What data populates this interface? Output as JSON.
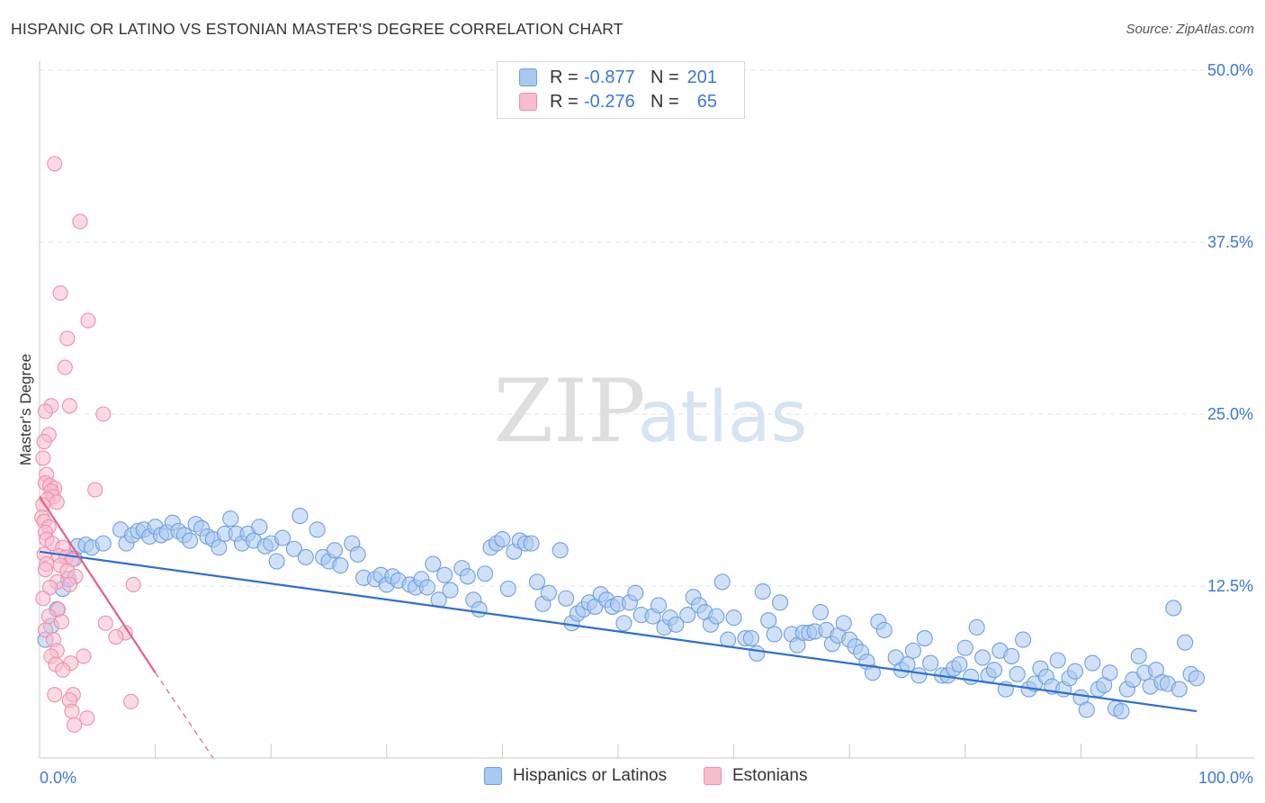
{
  "header": {
    "title": "HISPANIC OR LATINO VS ESTONIAN MASTER'S DEGREE CORRELATION CHART",
    "source": "Source: ZipAtlas.com"
  },
  "watermark": {
    "zip": "ZIP",
    "atlas": "atlas"
  },
  "legend_top": {
    "rows": [
      {
        "r_label": "R =",
        "r_value": "-0.877",
        "n_label": "N =",
        "n_value": "201"
      },
      {
        "r_label": "R =",
        "r_value": "-0.276",
        "n_label": "N =",
        "n_value": "65"
      }
    ]
  },
  "legend_bottom": {
    "series1": "Hispanics or Latinos",
    "series2": "Estonians"
  },
  "colors": {
    "blue_fill": "#a9c8f0",
    "blue_stroke": "#6f9fe0",
    "blue_line": "#2e6fcf",
    "pink_fill": "#f7bccd",
    "pink_stroke": "#ee8fab",
    "pink_line": "#e0608a",
    "tick_text": "#3b78d8",
    "grid": "#e3e3e3",
    "axis": "#c9c9c9"
  },
  "chart_data": {
    "type": "scatter",
    "title": "HISPANIC OR LATINO VS ESTONIAN MASTER'S DEGREE CORRELATION CHART",
    "xlabel": "",
    "ylabel": "Master's Degree",
    "xlim": [
      0,
      100
    ],
    "ylim": [
      0,
      50
    ],
    "x_tick_labels": [
      "0.0%",
      "100.0%"
    ],
    "y_ticks": [
      12.5,
      25,
      37.5,
      50
    ],
    "y_tick_labels": [
      "12.5%",
      "25.0%",
      "37.5%",
      "50.0%"
    ],
    "grid": "horizontal dashed",
    "legend": "top-center",
    "series": [
      {
        "name": "Hispanics or Latinos",
        "r": -0.877,
        "n": 201,
        "trend": {
          "x": [
            0,
            100
          ],
          "y": [
            15.0,
            3.4
          ]
        },
        "points": [
          [
            0.5,
            8.6
          ],
          [
            1.0,
            9.6
          ],
          [
            1.5,
            10.8
          ],
          [
            2.0,
            12.3
          ],
          [
            2.5,
            13.0
          ],
          [
            3.0,
            14.5
          ],
          [
            3.3,
            15.4
          ],
          [
            4.0,
            15.5
          ],
          [
            4.5,
            15.3
          ],
          [
            5.5,
            15.6
          ],
          [
            7.0,
            16.6
          ],
          [
            7.5,
            15.6
          ],
          [
            8.0,
            16.2
          ],
          [
            8.5,
            16.5
          ],
          [
            9.0,
            16.6
          ],
          [
            9.5,
            16.1
          ],
          [
            10.0,
            16.8
          ],
          [
            10.5,
            16.2
          ],
          [
            11.0,
            16.4
          ],
          [
            11.5,
            17.1
          ],
          [
            12.0,
            16.5
          ],
          [
            12.5,
            16.2
          ],
          [
            13.0,
            15.8
          ],
          [
            13.5,
            17.0
          ],
          [
            14.0,
            16.7
          ],
          [
            14.5,
            16.1
          ],
          [
            15.0,
            15.9
          ],
          [
            15.5,
            15.3
          ],
          [
            16.0,
            16.3
          ],
          [
            16.5,
            17.4
          ],
          [
            17.0,
            16.3
          ],
          [
            17.5,
            15.6
          ],
          [
            18.0,
            16.3
          ],
          [
            18.5,
            15.8
          ],
          [
            19.0,
            16.8
          ],
          [
            19.5,
            15.4
          ],
          [
            20.0,
            15.6
          ],
          [
            20.5,
            14.3
          ],
          [
            21.0,
            16.0
          ],
          [
            22.0,
            15.2
          ],
          [
            22.5,
            17.6
          ],
          [
            23.0,
            14.6
          ],
          [
            24.0,
            16.6
          ],
          [
            24.5,
            14.6
          ],
          [
            25.0,
            14.3
          ],
          [
            25.5,
            15.1
          ],
          [
            26.0,
            14.0
          ],
          [
            27.0,
            15.6
          ],
          [
            27.5,
            14.8
          ],
          [
            28.0,
            13.1
          ],
          [
            29.0,
            13.0
          ],
          [
            29.5,
            13.3
          ],
          [
            30.0,
            12.6
          ],
          [
            30.5,
            13.2
          ],
          [
            31.0,
            12.9
          ],
          [
            32.0,
            12.6
          ],
          [
            32.5,
            12.4
          ],
          [
            33.0,
            13.0
          ],
          [
            33.5,
            12.4
          ],
          [
            34.0,
            14.1
          ],
          [
            34.5,
            11.5
          ],
          [
            35.0,
            13.3
          ],
          [
            35.5,
            12.2
          ],
          [
            36.5,
            13.8
          ],
          [
            37.0,
            13.2
          ],
          [
            37.5,
            11.5
          ],
          [
            38.0,
            10.8
          ],
          [
            38.5,
            13.4
          ],
          [
            39.0,
            15.3
          ],
          [
            39.5,
            15.6
          ],
          [
            40.0,
            15.9
          ],
          [
            40.5,
            12.3
          ],
          [
            41.0,
            15.0
          ],
          [
            41.5,
            15.8
          ],
          [
            42.0,
            15.6
          ],
          [
            42.5,
            15.6
          ],
          [
            43.0,
            12.8
          ],
          [
            43.5,
            11.2
          ],
          [
            44.0,
            12.0
          ],
          [
            45.0,
            15.1
          ],
          [
            45.5,
            11.6
          ],
          [
            46.0,
            9.8
          ],
          [
            46.5,
            10.5
          ],
          [
            47.0,
            10.8
          ],
          [
            47.5,
            11.3
          ],
          [
            48.0,
            11.0
          ],
          [
            48.5,
            11.9
          ],
          [
            49.0,
            11.5
          ],
          [
            49.5,
            11.0
          ],
          [
            50.0,
            11.2
          ],
          [
            50.5,
            9.8
          ],
          [
            51.0,
            11.3
          ],
          [
            51.5,
            12.0
          ],
          [
            52.0,
            10.4
          ],
          [
            53.0,
            10.3
          ],
          [
            53.5,
            11.1
          ],
          [
            54.0,
            9.5
          ],
          [
            54.5,
            10.2
          ],
          [
            55.0,
            9.7
          ],
          [
            56.0,
            10.4
          ],
          [
            56.5,
            11.7
          ],
          [
            57.0,
            11.1
          ],
          [
            57.5,
            10.6
          ],
          [
            58.0,
            9.7
          ],
          [
            58.5,
            10.3
          ],
          [
            59.0,
            12.8
          ],
          [
            59.5,
            8.6
          ],
          [
            60.0,
            10.2
          ],
          [
            61.0,
            8.7
          ],
          [
            61.5,
            8.7
          ],
          [
            62.0,
            7.6
          ],
          [
            62.5,
            12.1
          ],
          [
            63.0,
            10.0
          ],
          [
            63.5,
            9.0
          ],
          [
            64.0,
            11.3
          ],
          [
            65.0,
            9.0
          ],
          [
            65.5,
            8.2
          ],
          [
            66.0,
            9.1
          ],
          [
            66.5,
            9.1
          ],
          [
            67.0,
            9.2
          ],
          [
            67.5,
            10.6
          ],
          [
            68.0,
            9.3
          ],
          [
            68.5,
            8.3
          ],
          [
            69.0,
            8.9
          ],
          [
            69.5,
            9.8
          ],
          [
            70.0,
            8.6
          ],
          [
            70.5,
            8.1
          ],
          [
            71.0,
            7.7
          ],
          [
            71.5,
            7.0
          ],
          [
            72.0,
            6.2
          ],
          [
            72.5,
            9.9
          ],
          [
            73.0,
            9.3
          ],
          [
            74.0,
            7.3
          ],
          [
            74.5,
            6.4
          ],
          [
            75.0,
            6.8
          ],
          [
            75.5,
            7.8
          ],
          [
            76.0,
            6.0
          ],
          [
            76.5,
            8.7
          ],
          [
            77.0,
            6.9
          ],
          [
            78.0,
            6.0
          ],
          [
            78.5,
            6.0
          ],
          [
            79.0,
            6.5
          ],
          [
            79.5,
            6.8
          ],
          [
            80.0,
            8.0
          ],
          [
            80.5,
            5.9
          ],
          [
            81.0,
            9.5
          ],
          [
            81.5,
            7.3
          ],
          [
            82.0,
            6.0
          ],
          [
            82.5,
            6.4
          ],
          [
            83.0,
            7.8
          ],
          [
            83.5,
            5.0
          ],
          [
            84.0,
            7.4
          ],
          [
            84.5,
            6.1
          ],
          [
            85.0,
            8.6
          ],
          [
            85.5,
            5.0
          ],
          [
            86.0,
            5.4
          ],
          [
            86.5,
            6.5
          ],
          [
            87.0,
            5.9
          ],
          [
            87.5,
            5.2
          ],
          [
            88.0,
            7.1
          ],
          [
            88.5,
            5.0
          ],
          [
            89.0,
            5.8
          ],
          [
            89.5,
            6.3
          ],
          [
            90.0,
            4.4
          ],
          [
            90.5,
            3.5
          ],
          [
            91.0,
            6.9
          ],
          [
            91.5,
            5.0
          ],
          [
            92.0,
            5.3
          ],
          [
            92.5,
            6.2
          ],
          [
            93.0,
            3.6
          ],
          [
            93.5,
            3.4
          ],
          [
            94.0,
            5.0
          ],
          [
            94.5,
            5.7
          ],
          [
            95.0,
            7.4
          ],
          [
            95.5,
            6.2
          ],
          [
            96.0,
            5.2
          ],
          [
            96.5,
            6.4
          ],
          [
            97.0,
            5.5
          ],
          [
            97.5,
            5.4
          ],
          [
            98.0,
            10.9
          ],
          [
            98.5,
            5.0
          ],
          [
            99.0,
            8.4
          ],
          [
            99.5,
            6.1
          ],
          [
            100.0,
            5.8
          ]
        ]
      },
      {
        "name": "Estonians",
        "r": -0.276,
        "n": 65,
        "trend": {
          "x": [
            0,
            10
          ],
          "y": [
            19.0,
            6.2
          ]
        },
        "trend_dashed": {
          "x": [
            10,
            15
          ],
          "y": [
            6.2,
            0.0
          ]
        },
        "points": [
          [
            1.3,
            43.2
          ],
          [
            3.5,
            39.0
          ],
          [
            1.8,
            33.8
          ],
          [
            4.2,
            31.8
          ],
          [
            2.4,
            30.5
          ],
          [
            2.2,
            28.4
          ],
          [
            1.0,
            25.6
          ],
          [
            2.6,
            25.6
          ],
          [
            0.5,
            25.2
          ],
          [
            5.5,
            25.0
          ],
          [
            0.8,
            23.5
          ],
          [
            0.4,
            23.0
          ],
          [
            0.3,
            21.8
          ],
          [
            0.6,
            20.6
          ],
          [
            0.5,
            20.0
          ],
          [
            0.9,
            19.8
          ],
          [
            1.3,
            19.6
          ],
          [
            1.0,
            19.4
          ],
          [
            4.8,
            19.5
          ],
          [
            1.2,
            19.0
          ],
          [
            0.7,
            18.8
          ],
          [
            1.5,
            18.6
          ],
          [
            0.3,
            18.4
          ],
          [
            0.2,
            17.5
          ],
          [
            0.4,
            17.2
          ],
          [
            0.8,
            16.8
          ],
          [
            0.5,
            16.4
          ],
          [
            0.6,
            15.9
          ],
          [
            1.1,
            15.6
          ],
          [
            2.0,
            15.3
          ],
          [
            0.4,
            14.8
          ],
          [
            1.7,
            14.7
          ],
          [
            2.3,
            14.6
          ],
          [
            2.8,
            14.4
          ],
          [
            0.6,
            14.1
          ],
          [
            1.8,
            14.0
          ],
          [
            2.4,
            13.6
          ],
          [
            0.5,
            13.7
          ],
          [
            3.1,
            13.2
          ],
          [
            1.5,
            12.8
          ],
          [
            2.6,
            12.6
          ],
          [
            8.1,
            12.6
          ],
          [
            0.9,
            12.4
          ],
          [
            0.3,
            11.6
          ],
          [
            1.6,
            10.8
          ],
          [
            0.8,
            10.3
          ],
          [
            1.9,
            9.9
          ],
          [
            5.7,
            9.8
          ],
          [
            0.5,
            9.3
          ],
          [
            7.4,
            9.1
          ],
          [
            6.6,
            8.8
          ],
          [
            1.2,
            8.6
          ],
          [
            1.5,
            7.8
          ],
          [
            1.0,
            7.4
          ],
          [
            3.8,
            7.4
          ],
          [
            2.7,
            6.9
          ],
          [
            1.4,
            6.8
          ],
          [
            2.0,
            6.4
          ],
          [
            1.3,
            4.6
          ],
          [
            2.9,
            4.6
          ],
          [
            2.6,
            4.2
          ],
          [
            7.9,
            4.1
          ],
          [
            2.8,
            3.4
          ],
          [
            4.1,
            2.9
          ],
          [
            3.0,
            2.4
          ]
        ]
      }
    ]
  }
}
